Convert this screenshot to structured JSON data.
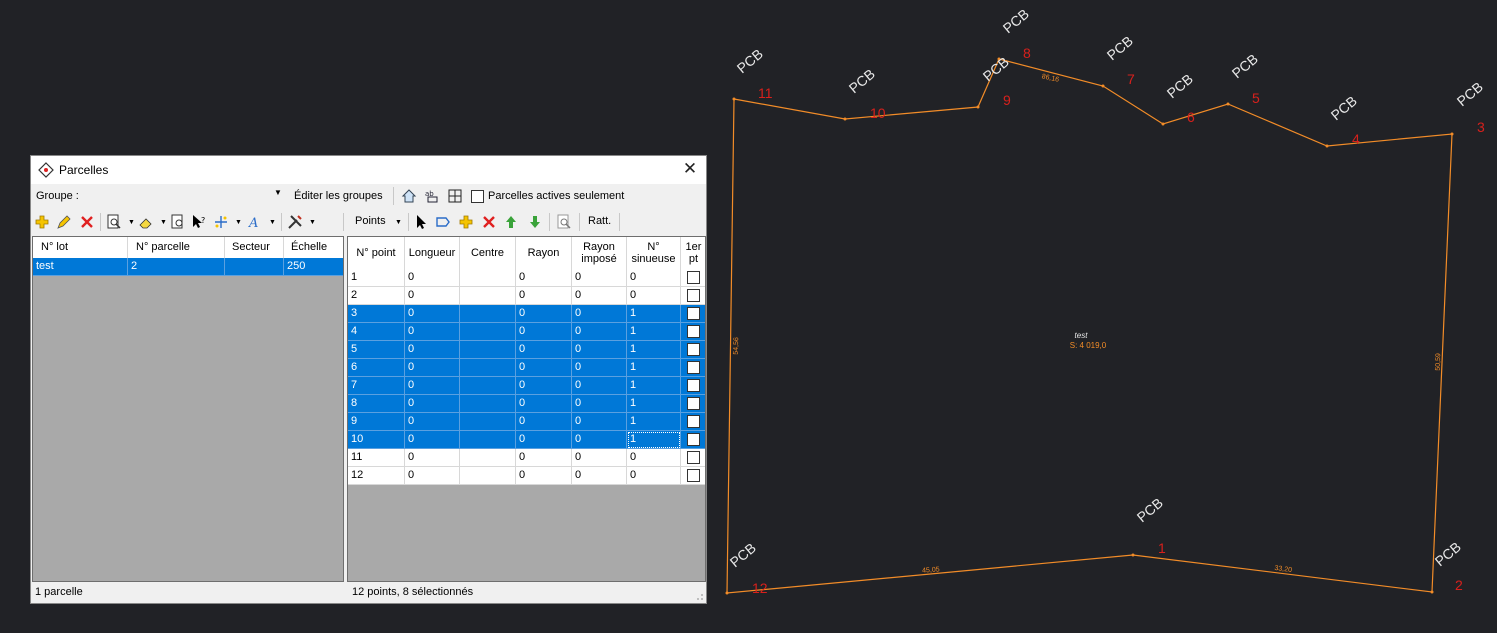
{
  "window": {
    "title": "Parcelles",
    "close": "✕"
  },
  "group": {
    "label": "Groupe :",
    "value": "",
    "edit_label": "Éditer les groupes",
    "active_only_label": "Parcelles actives seulement"
  },
  "toolbar": {
    "points_label": "Points",
    "ratt_label": "Ratt."
  },
  "parcels": {
    "columns": [
      "N° lot",
      "N° parcelle",
      "Secteur",
      "Échelle"
    ],
    "rows": [
      [
        "test",
        "2",
        "",
        "250"
      ]
    ]
  },
  "points": {
    "columns": [
      "N° point",
      "Longueur",
      "Centre",
      "Rayon",
      "Rayon\nimposé",
      "N°\nsinueuse",
      "1er\npt"
    ],
    "rows": [
      {
        "n": "1",
        "longueur": "0",
        "centre": "",
        "rayon": "0",
        "impose": "0",
        "sinueuse": "0",
        "selected": false,
        "first": false
      },
      {
        "n": "2",
        "longueur": "0",
        "centre": "",
        "rayon": "0",
        "impose": "0",
        "sinueuse": "0",
        "selected": false,
        "first": false
      },
      {
        "n": "3",
        "longueur": "0",
        "centre": "",
        "rayon": "0",
        "impose": "0",
        "sinueuse": "1",
        "selected": true,
        "first": false
      },
      {
        "n": "4",
        "longueur": "0",
        "centre": "",
        "rayon": "0",
        "impose": "0",
        "sinueuse": "1",
        "selected": true,
        "first": false
      },
      {
        "n": "5",
        "longueur": "0",
        "centre": "",
        "rayon": "0",
        "impose": "0",
        "sinueuse": "1",
        "selected": true,
        "first": false
      },
      {
        "n": "6",
        "longueur": "0",
        "centre": "",
        "rayon": "0",
        "impose": "0",
        "sinueuse": "1",
        "selected": true,
        "first": false
      },
      {
        "n": "7",
        "longueur": "0",
        "centre": "",
        "rayon": "0",
        "impose": "0",
        "sinueuse": "1",
        "selected": true,
        "first": false
      },
      {
        "n": "8",
        "longueur": "0",
        "centre": "",
        "rayon": "0",
        "impose": "0",
        "sinueuse": "1",
        "selected": true,
        "first": false
      },
      {
        "n": "9",
        "longueur": "0",
        "centre": "",
        "rayon": "0",
        "impose": "0",
        "sinueuse": "1",
        "selected": true,
        "first": false
      },
      {
        "n": "10",
        "longueur": "0",
        "centre": "",
        "rayon": "0",
        "impose": "0",
        "sinueuse": "1",
        "selected": true,
        "first": false
      },
      {
        "n": "11",
        "longueur": "0",
        "centre": "",
        "rayon": "0",
        "impose": "0",
        "sinueuse": "0",
        "selected": false,
        "first": false
      },
      {
        "n": "12",
        "longueur": "0",
        "centre": "",
        "rayon": "0",
        "impose": "0",
        "sinueuse": "0",
        "selected": false,
        "first": false
      }
    ]
  },
  "status": {
    "left": "1 parcelle",
    "right": "12 points, 8 sélectionnés"
  },
  "drawing": {
    "parcel_name": "test",
    "area_label": "S: 4 019,0",
    "point_code": "PCB",
    "vertex_labels": [
      "1",
      "2",
      "3",
      "4",
      "5",
      "6",
      "7",
      "8",
      "9",
      "10",
      "11",
      "12"
    ],
    "segment_labels": [
      "33,20",
      "50,59",
      "86,16",
      "54,56",
      "45,05"
    ],
    "colors": {
      "background": "#212226",
      "boundary": "#f28c28",
      "vertex_number": "#d8201c",
      "point_code": "#e8e8e8",
      "selection": "#0078d7"
    }
  }
}
